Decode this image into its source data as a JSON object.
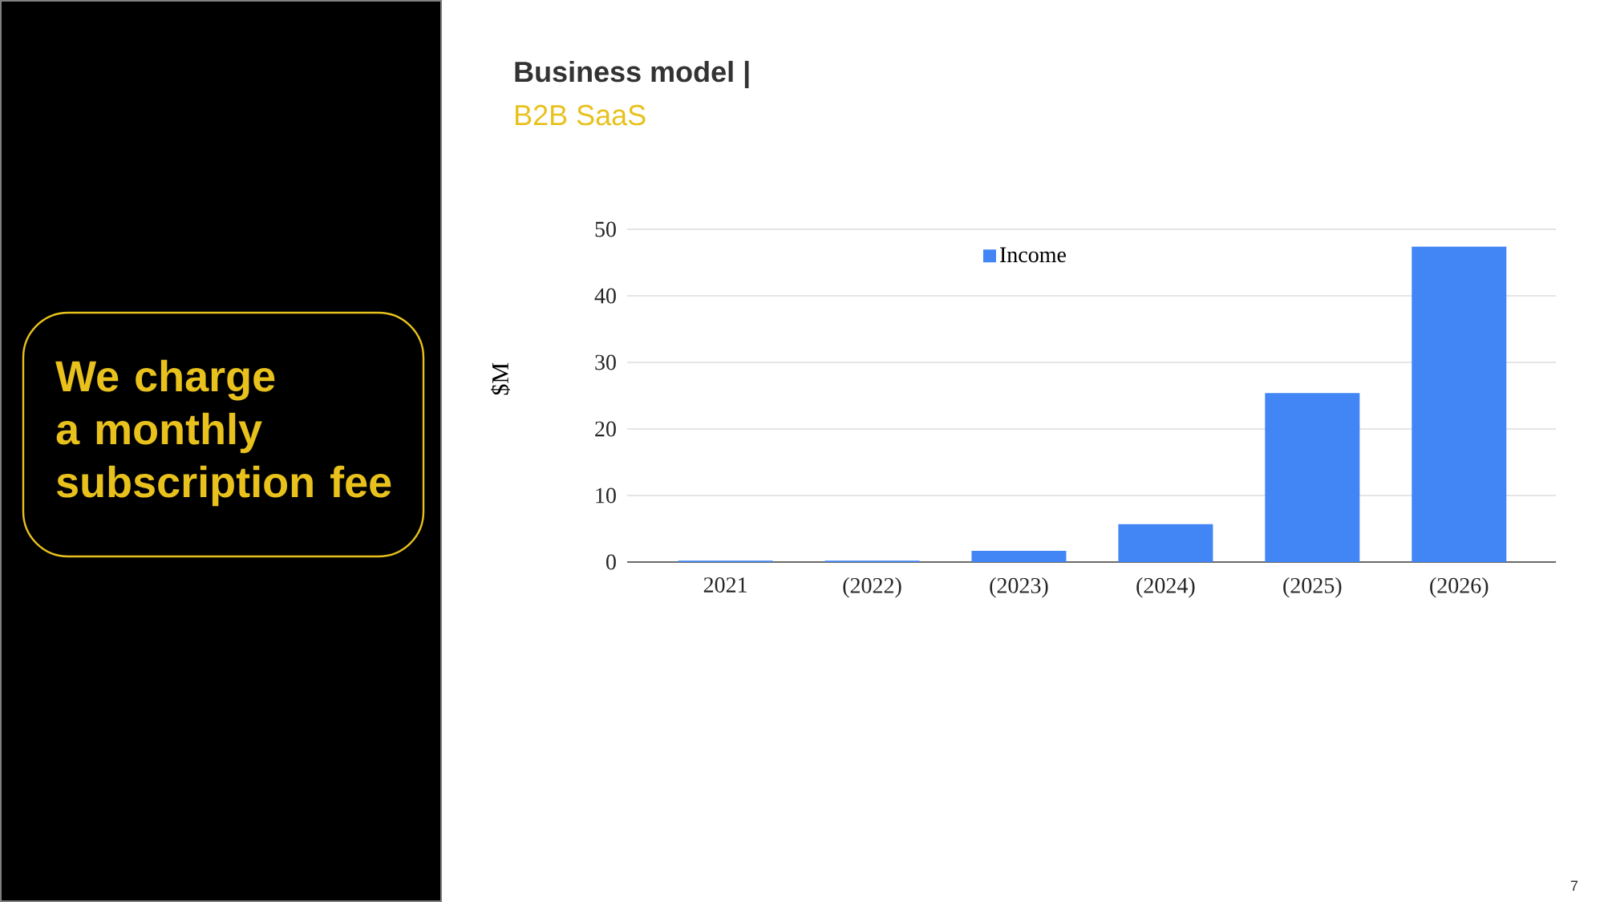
{
  "chart_data": {
    "type": "bar",
    "title": "Business model |",
    "subtitle": "B2B SaaS",
    "ylabel": "$M",
    "categories": [
      "2021",
      "(2022)",
      "(2023)",
      "(2024)",
      "(2025)",
      "(2026)"
    ],
    "series": [
      {
        "name": "Income",
        "color": "#4285f4",
        "values": [
          0.2,
          0.2,
          1.7,
          5.7,
          25.4,
          47.4
        ]
      }
    ],
    "ylim": [
      0,
      50
    ],
    "yticks": [
      0,
      10,
      20,
      30,
      40,
      50
    ],
    "grid": "y",
    "legend": "top",
    "annotations": [
      "We charge a monthly subscription fee",
      "7"
    ]
  }
}
